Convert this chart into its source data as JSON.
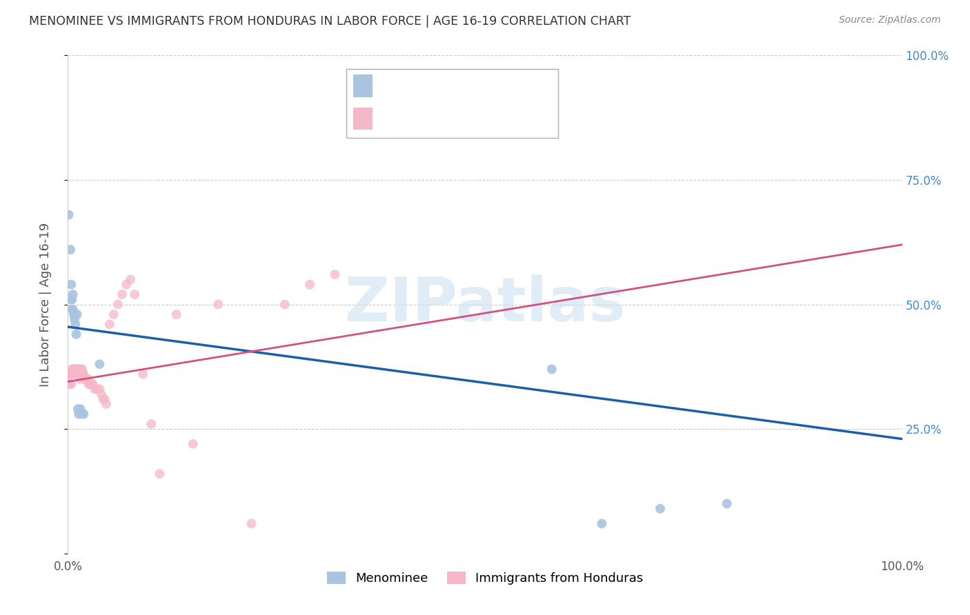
{
  "title": "MENOMINEE VS IMMIGRANTS FROM HONDURAS IN LABOR FORCE | AGE 16-19 CORRELATION CHART",
  "source": "Source: ZipAtlas.com",
  "ylabel": "In Labor Force | Age 16-19",
  "legend_label_blue": "Menominee",
  "legend_label_pink": "Immigrants from Honduras",
  "blue_color": "#aac4e0",
  "pink_color": "#f5b8c8",
  "blue_line_color": "#1a5fa8",
  "pink_line_color": "#d45080",
  "watermark": "ZIPatlas",
  "blue_points_x": [
    0.001,
    0.003,
    0.004,
    0.004,
    0.005,
    0.005,
    0.006,
    0.006,
    0.007,
    0.008,
    0.009,
    0.01,
    0.011,
    0.012,
    0.013,
    0.015,
    0.017,
    0.019,
    0.038,
    0.58,
    0.64,
    0.71,
    0.79
  ],
  "blue_points_y": [
    0.68,
    0.61,
    0.54,
    0.51,
    0.49,
    0.51,
    0.49,
    0.52,
    0.48,
    0.47,
    0.46,
    0.44,
    0.48,
    0.29,
    0.28,
    0.29,
    0.28,
    0.28,
    0.38,
    0.37,
    0.06,
    0.09,
    0.1
  ],
  "pink_points_x": [
    0.001,
    0.002,
    0.003,
    0.003,
    0.004,
    0.004,
    0.005,
    0.005,
    0.006,
    0.006,
    0.007,
    0.007,
    0.008,
    0.008,
    0.009,
    0.009,
    0.01,
    0.01,
    0.011,
    0.011,
    0.012,
    0.012,
    0.013,
    0.013,
    0.014,
    0.014,
    0.015,
    0.015,
    0.016,
    0.016,
    0.017,
    0.017,
    0.018,
    0.019,
    0.02,
    0.021,
    0.022,
    0.023,
    0.024,
    0.025,
    0.026,
    0.028,
    0.03,
    0.032,
    0.035,
    0.038,
    0.04,
    0.042,
    0.044,
    0.046,
    0.05,
    0.055,
    0.06,
    0.065,
    0.07,
    0.075,
    0.08,
    0.09,
    0.1,
    0.11,
    0.13,
    0.15,
    0.18,
    0.22,
    0.26,
    0.29,
    0.32
  ],
  "pink_points_y": [
    0.34,
    0.36,
    0.36,
    0.34,
    0.36,
    0.34,
    0.36,
    0.37,
    0.36,
    0.37,
    0.37,
    0.36,
    0.37,
    0.36,
    0.37,
    0.36,
    0.37,
    0.36,
    0.37,
    0.36,
    0.37,
    0.36,
    0.37,
    0.36,
    0.37,
    0.36,
    0.37,
    0.35,
    0.37,
    0.36,
    0.37,
    0.36,
    0.36,
    0.36,
    0.35,
    0.35,
    0.35,
    0.35,
    0.35,
    0.34,
    0.34,
    0.34,
    0.34,
    0.33,
    0.33,
    0.33,
    0.32,
    0.31,
    0.31,
    0.3,
    0.46,
    0.48,
    0.5,
    0.52,
    0.54,
    0.55,
    0.52,
    0.36,
    0.26,
    0.16,
    0.48,
    0.22,
    0.5,
    0.06,
    0.5,
    0.54,
    0.56
  ],
  "blue_line_x0": 0.0,
  "blue_line_y0": 0.455,
  "blue_line_x1": 1.0,
  "blue_line_y1": 0.23,
  "pink_line_x0": 0.0,
  "pink_line_y0": 0.345,
  "pink_line_x1": 1.0,
  "pink_line_y1": 0.62,
  "background_color": "#ffffff",
  "grid_color": "#cccccc",
  "title_color": "#333333",
  "right_axis_color": "#4488cc",
  "marker_size": 100,
  "xlim": [
    0,
    1.0
  ],
  "ylim": [
    0,
    1.0
  ],
  "ytick_vals": [
    0.0,
    0.25,
    0.5,
    0.75,
    1.0
  ],
  "ytick_labels_right": [
    "",
    "25.0%",
    "50.0%",
    "75.0%",
    "100.0%"
  ]
}
